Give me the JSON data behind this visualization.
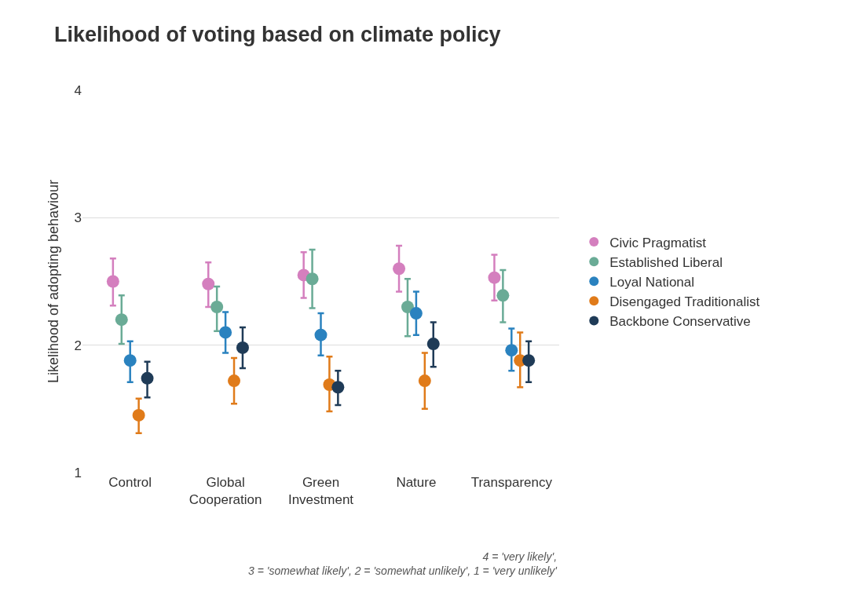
{
  "chart_data": {
    "type": "scatter",
    "title": "Likelihood of voting based on climate policy",
    "ylabel": "Likelihood of adopting behaviour",
    "categories": [
      "Control",
      "Global Cooperation",
      "Green Investment",
      "Nature",
      "Transparency"
    ],
    "series": [
      {
        "name": "Civic Pragmatist",
        "color": "#d47fbe",
        "values": [
          2.5,
          2.48,
          2.55,
          2.6,
          2.53
        ],
        "errors": [
          [
            2.31,
            2.68
          ],
          [
            2.3,
            2.65
          ],
          [
            2.37,
            2.73
          ],
          [
            2.42,
            2.78
          ],
          [
            2.35,
            2.71
          ]
        ]
      },
      {
        "name": "Established Liberal",
        "color": "#6aab96",
        "values": [
          2.2,
          2.3,
          2.52,
          2.3,
          2.39
        ],
        "errors": [
          [
            2.01,
            2.39
          ],
          [
            2.11,
            2.46
          ],
          [
            2.29,
            2.75
          ],
          [
            2.07,
            2.52
          ],
          [
            2.18,
            2.59
          ]
        ]
      },
      {
        "name": "Loyal National",
        "color": "#2a82bf",
        "values": [
          1.88,
          2.1,
          2.08,
          2.25,
          1.96
        ],
        "errors": [
          [
            1.71,
            2.03
          ],
          [
            1.94,
            2.26
          ],
          [
            1.92,
            2.25
          ],
          [
            2.08,
            2.42
          ],
          [
            1.8,
            2.13
          ]
        ]
      },
      {
        "name": "Disengaged Traditionalist",
        "color": "#e07b1a",
        "values": [
          1.45,
          1.72,
          1.69,
          1.72,
          1.88
        ],
        "errors": [
          [
            1.31,
            1.58
          ],
          [
            1.54,
            1.9
          ],
          [
            1.48,
            1.91
          ],
          [
            1.5,
            1.94
          ],
          [
            1.67,
            2.1
          ]
        ]
      },
      {
        "name": "Backbone Conservative",
        "color": "#1f3b57",
        "values": [
          1.74,
          1.98,
          1.67,
          2.01,
          1.88
        ],
        "errors": [
          [
            1.59,
            1.87
          ],
          [
            1.82,
            2.14
          ],
          [
            1.53,
            1.8
          ],
          [
            1.83,
            2.18
          ],
          [
            1.71,
            2.03
          ]
        ]
      }
    ],
    "ylim": [
      1,
      4
    ],
    "yticks": [
      1,
      2,
      3,
      4
    ],
    "grid": "y",
    "legend": "right",
    "marker": "circle",
    "annotations": [
      "4 = 'very likely',\n3 = 'somewhat likely', 2 = 'somewhat unlikely', 1 = 'very unlikely'"
    ]
  }
}
